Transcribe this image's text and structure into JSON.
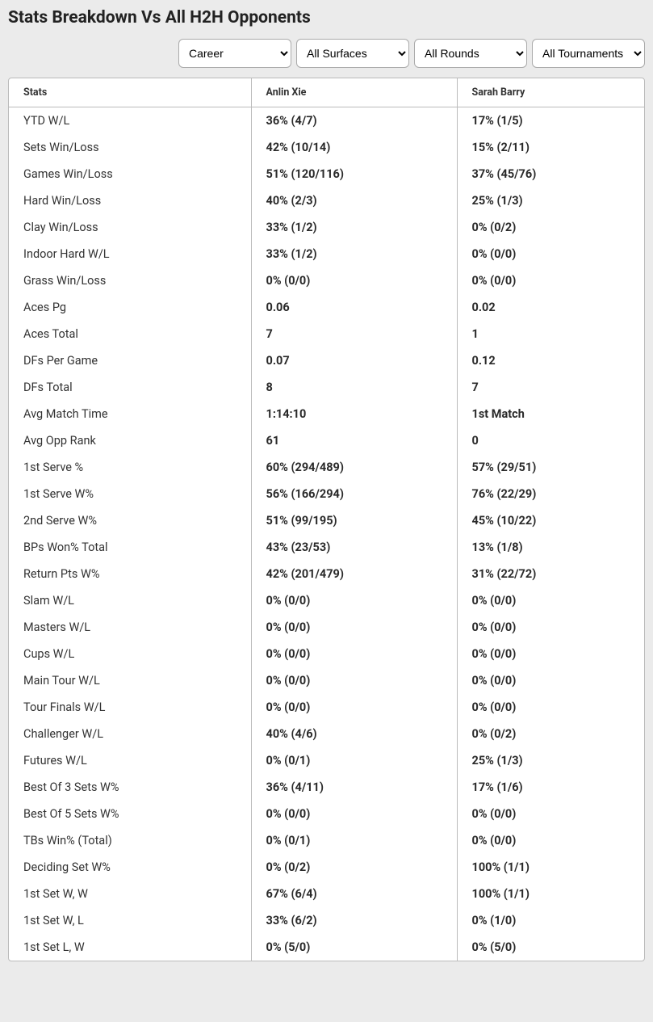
{
  "page_title": "Stats Breakdown Vs All H2H Opponents",
  "filters": {
    "career": "Career",
    "surfaces": "All Surfaces",
    "rounds": "All Rounds",
    "tournaments": "All Tournaments"
  },
  "table": {
    "headers": {
      "stats": "Stats",
      "player1": "Anlin Xie",
      "player2": "Sarah Barry"
    },
    "rows": [
      {
        "stat": "YTD W/L",
        "p1": "36% (4/7)",
        "p2": "17% (1/5)"
      },
      {
        "stat": "Sets Win/Loss",
        "p1": "42% (10/14)",
        "p2": "15% (2/11)"
      },
      {
        "stat": "Games Win/Loss",
        "p1": "51% (120/116)",
        "p2": "37% (45/76)"
      },
      {
        "stat": "Hard Win/Loss",
        "p1": "40% (2/3)",
        "p2": "25% (1/3)"
      },
      {
        "stat": "Clay Win/Loss",
        "p1": "33% (1/2)",
        "p2": "0% (0/2)"
      },
      {
        "stat": "Indoor Hard W/L",
        "p1": "33% (1/2)",
        "p2": "0% (0/0)"
      },
      {
        "stat": "Grass Win/Loss",
        "p1": "0% (0/0)",
        "p2": "0% (0/0)"
      },
      {
        "stat": "Aces Pg",
        "p1": "0.06",
        "p2": "0.02"
      },
      {
        "stat": "Aces Total",
        "p1": "7",
        "p2": "1"
      },
      {
        "stat": "DFs Per Game",
        "p1": "0.07",
        "p2": "0.12"
      },
      {
        "stat": "DFs Total",
        "p1": "8",
        "p2": "7"
      },
      {
        "stat": "Avg Match Time",
        "p1": "1:14:10",
        "p2": "1st Match"
      },
      {
        "stat": "Avg Opp Rank",
        "p1": "61",
        "p2": "0"
      },
      {
        "stat": "1st Serve %",
        "p1": "60% (294/489)",
        "p2": "57% (29/51)"
      },
      {
        "stat": "1st Serve W%",
        "p1": "56% (166/294)",
        "p2": "76% (22/29)"
      },
      {
        "stat": "2nd Serve W%",
        "p1": "51% (99/195)",
        "p2": "45% (10/22)"
      },
      {
        "stat": "BPs Won% Total",
        "p1": "43% (23/53)",
        "p2": "13% (1/8)"
      },
      {
        "stat": "Return Pts W%",
        "p1": "42% (201/479)",
        "p2": "31% (22/72)"
      },
      {
        "stat": "Slam W/L",
        "p1": "0% (0/0)",
        "p2": "0% (0/0)"
      },
      {
        "stat": "Masters W/L",
        "p1": "0% (0/0)",
        "p2": "0% (0/0)"
      },
      {
        "stat": "Cups W/L",
        "p1": "0% (0/0)",
        "p2": "0% (0/0)"
      },
      {
        "stat": "Main Tour W/L",
        "p1": "0% (0/0)",
        "p2": "0% (0/0)"
      },
      {
        "stat": "Tour Finals W/L",
        "p1": "0% (0/0)",
        "p2": "0% (0/0)"
      },
      {
        "stat": "Challenger W/L",
        "p1": "40% (4/6)",
        "p2": "0% (0/2)"
      },
      {
        "stat": "Futures W/L",
        "p1": "0% (0/1)",
        "p2": "25% (1/3)"
      },
      {
        "stat": "Best Of 3 Sets W%",
        "p1": "36% (4/11)",
        "p2": "17% (1/6)"
      },
      {
        "stat": "Best Of 5 Sets W%",
        "p1": "0% (0/0)",
        "p2": "0% (0/0)"
      },
      {
        "stat": "TBs Win% (Total)",
        "p1": "0% (0/1)",
        "p2": "0% (0/0)"
      },
      {
        "stat": "Deciding Set W%",
        "p1": "0% (0/2)",
        "p2": "100% (1/1)"
      },
      {
        "stat": "1st Set W, W",
        "p1": "67% (6/4)",
        "p2": "100% (1/1)"
      },
      {
        "stat": "1st Set W, L",
        "p1": "33% (6/2)",
        "p2": "0% (1/0)"
      },
      {
        "stat": "1st Set L, W",
        "p1": "0% (5/0)",
        "p2": "0% (5/0)"
      }
    ]
  }
}
